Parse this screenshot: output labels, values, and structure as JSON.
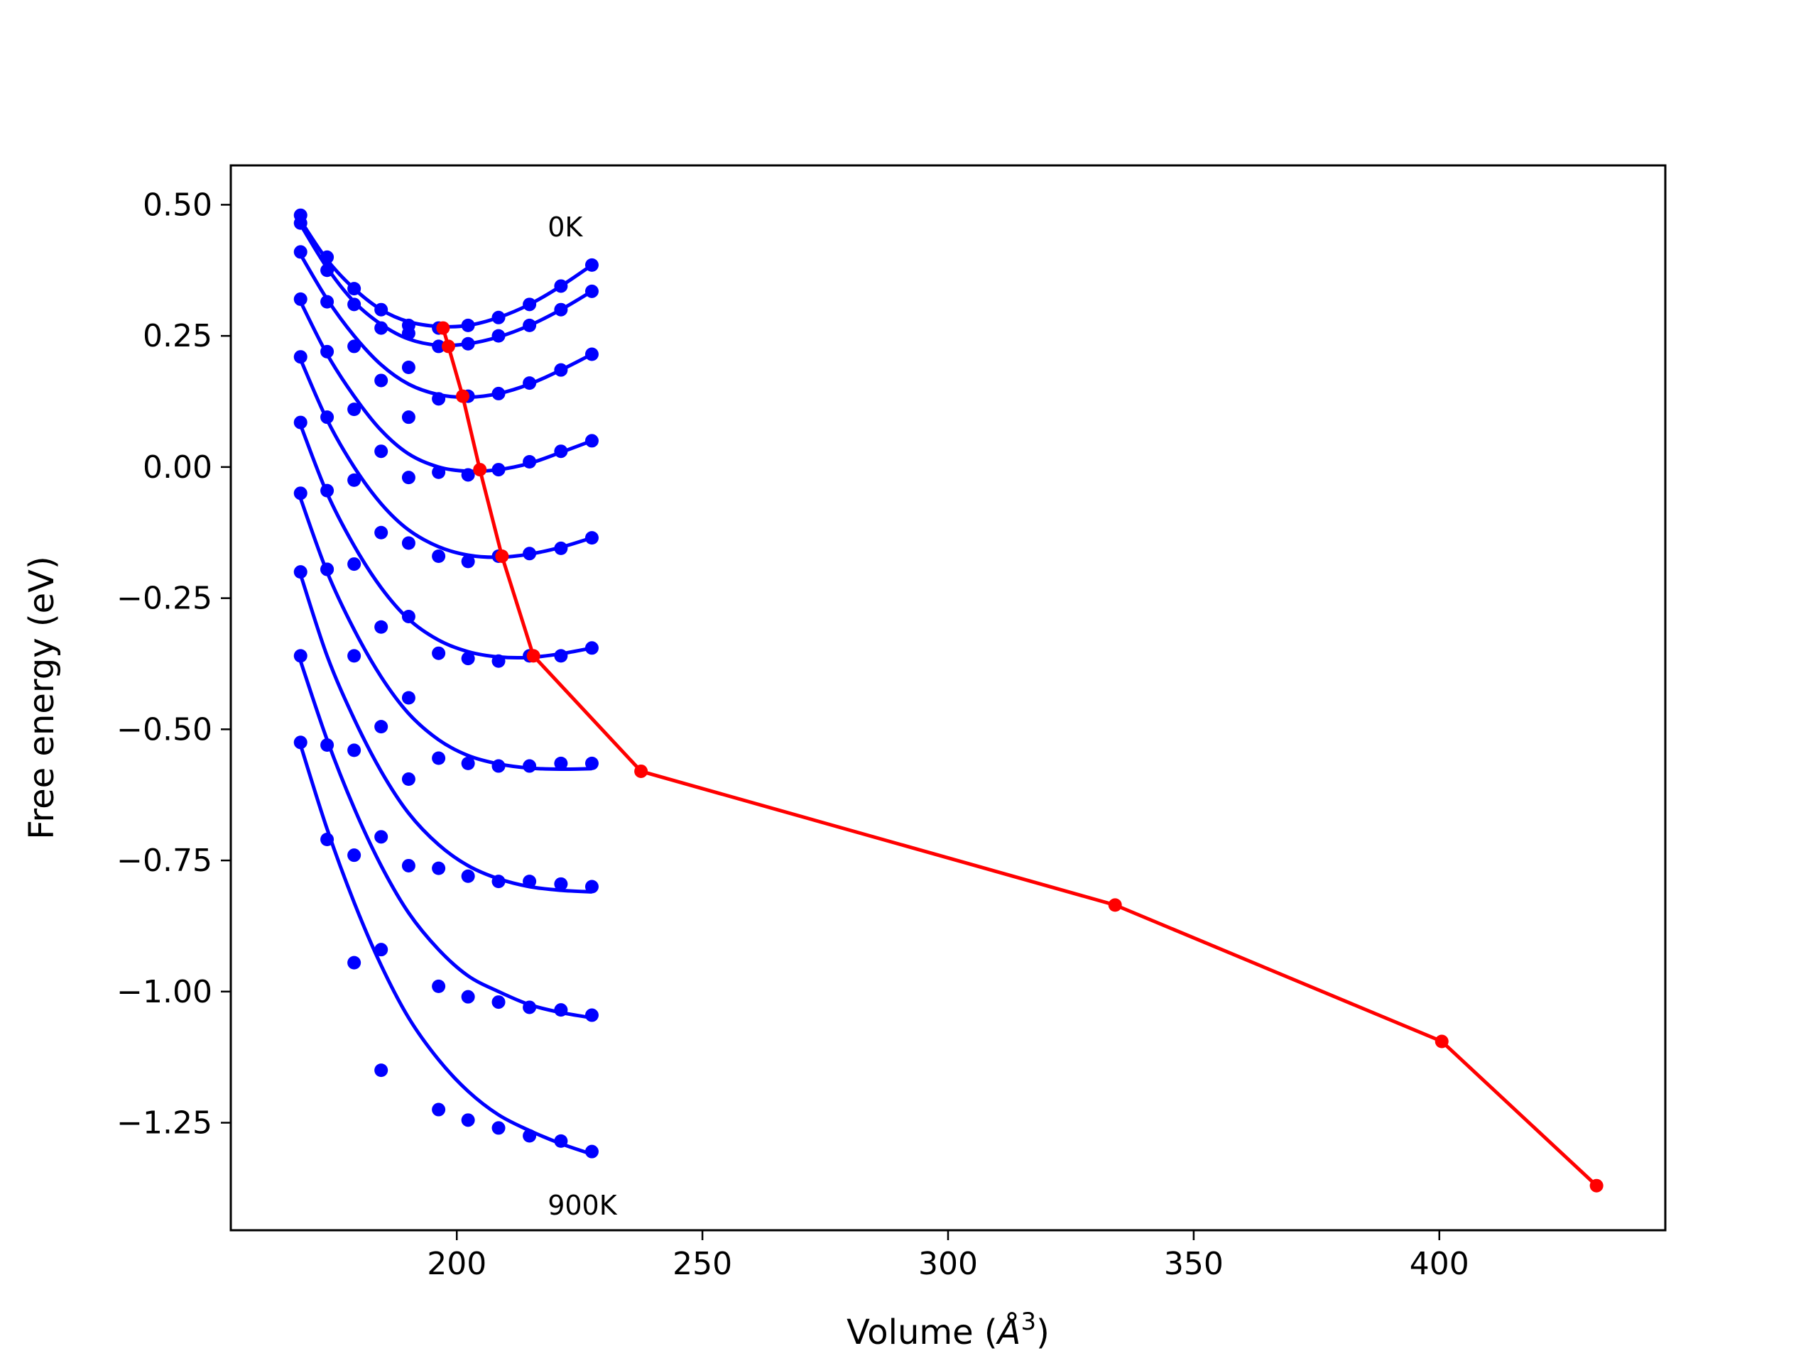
{
  "chart_data": {
    "type": "line",
    "xlabel": "Volume (Å³)",
    "xlabel_parts": {
      "pre": "Volume (",
      "sym": "Å",
      "sup": "3",
      "post": ")"
    },
    "ylabel": "Free energy (eV)",
    "xlim": [
      154,
      446
    ],
    "ylim": [
      -1.455,
      0.575
    ],
    "xticks": [
      200,
      250,
      300,
      350,
      400
    ],
    "xtick_labels": [
      "200",
      "250",
      "300",
      "350",
      "400"
    ],
    "yticks": [
      0.5,
      0.25,
      0.0,
      -0.25,
      -0.5,
      -0.75,
      -1.0,
      -1.25
    ],
    "ytick_labels": [
      "0.50",
      "0.25",
      "0.00",
      "−0.25",
      "−0.50",
      "−0.75",
      "−1.00",
      "−1.25"
    ],
    "grid": false,
    "annotations": [
      {
        "text": "0K",
        "x": 218.5,
        "y": 0.44
      },
      {
        "text": "900K",
        "x": 218.5,
        "y": -1.425
      }
    ],
    "colors": {
      "isotherm": "#0000ff",
      "minimum": "#ff0000"
    },
    "scatter_x": [
      168.2,
      173.6,
      179.1,
      184.6,
      190.2,
      196.3,
      202.3,
      208.5,
      214.8,
      221.2,
      227.5
    ],
    "isotherms": [
      {
        "y": [
          0.48,
          0.4,
          0.34,
          0.3,
          0.27,
          0.265,
          0.27,
          0.285,
          0.31,
          0.345,
          0.385
        ],
        "fit": [
          0.47,
          0.395,
          0.34,
          0.3,
          0.277,
          0.268,
          0.27,
          0.285,
          0.31,
          0.345,
          0.385
        ]
      },
      {
        "y": [
          0.465,
          0.375,
          0.31,
          0.265,
          0.255,
          0.23,
          0.235,
          0.25,
          0.27,
          0.3,
          0.335
        ],
        "fit": [
          0.462,
          0.38,
          0.315,
          0.272,
          0.244,
          0.232,
          0.235,
          0.248,
          0.27,
          0.3,
          0.335
        ]
      },
      {
        "y": [
          0.41,
          0.315,
          0.23,
          0.165,
          0.19,
          0.13,
          0.135,
          0.14,
          0.16,
          0.185,
          0.215
        ],
        "fit": [
          0.405,
          0.32,
          0.25,
          0.195,
          0.158,
          0.138,
          0.133,
          0.14,
          0.158,
          0.185,
          0.215
        ]
      },
      {
        "y": [
          0.32,
          0.22,
          0.11,
          0.03,
          0.095,
          -0.01,
          -0.015,
          -0.005,
          0.01,
          0.03,
          0.05
        ],
        "fit": [
          0.315,
          0.215,
          0.135,
          0.07,
          0.025,
          0.0,
          -0.008,
          -0.005,
          0.007,
          0.028,
          0.05
        ]
      },
      {
        "y": [
          0.21,
          0.095,
          -0.025,
          -0.125,
          -0.02,
          -0.17,
          -0.18,
          -0.17,
          -0.165,
          -0.155,
          -0.135
        ],
        "fit": [
          0.205,
          0.09,
          0.0,
          -0.07,
          -0.12,
          -0.152,
          -0.168,
          -0.172,
          -0.166,
          -0.153,
          -0.135
        ]
      },
      {
        "y": [
          0.085,
          -0.045,
          -0.185,
          -0.305,
          -0.145,
          -0.355,
          -0.365,
          -0.37,
          -0.36,
          -0.36,
          -0.345
        ],
        "fit": [
          0.08,
          -0.05,
          -0.15,
          -0.23,
          -0.29,
          -0.33,
          -0.352,
          -0.362,
          -0.363,
          -0.356,
          -0.345
        ]
      },
      {
        "y": [
          -0.05,
          -0.195,
          -0.36,
          -0.495,
          -0.285,
          -0.555,
          -0.565,
          -0.57,
          -0.57,
          -0.565,
          -0.565
        ],
        "fit": [
          -0.06,
          -0.2,
          -0.31,
          -0.4,
          -0.47,
          -0.52,
          -0.55,
          -0.566,
          -0.574,
          -0.576,
          -0.575
        ]
      },
      {
        "y": [
          -0.2,
          -0.53,
          -0.54,
          -0.705,
          -0.44,
          -0.765,
          -0.78,
          -0.79,
          -0.79,
          -0.795,
          -0.8
        ],
        "fit": [
          -0.205,
          -0.36,
          -0.48,
          -0.58,
          -0.66,
          -0.72,
          -0.76,
          -0.785,
          -0.8,
          -0.807,
          -0.81
        ]
      },
      {
        "y": [
          -0.36,
          -0.71,
          -0.74,
          -0.92,
          -0.595,
          -0.99,
          -1.01,
          -1.02,
          -1.03,
          -1.035,
          -1.045
        ],
        "fit": [
          -0.37,
          -0.52,
          -0.65,
          -0.76,
          -0.85,
          -0.92,
          -0.97,
          -1.0,
          -1.025,
          -1.04,
          -1.05
        ]
      },
      {
        "y": [
          -0.525,
          -0.195,
          -0.945,
          -1.15,
          -0.76,
          -1.225,
          -1.245,
          -1.26,
          -1.275,
          -1.285,
          -1.305
        ],
        "fit": [
          -0.53,
          -0.69,
          -0.83,
          -0.95,
          -1.05,
          -1.13,
          -1.19,
          -1.235,
          -1.265,
          -1.29,
          -1.31
        ]
      }
    ],
    "minimum_curve": {
      "x": [
        197.2,
        198.3,
        201.2,
        204.7,
        209.2,
        215.6,
        237.5,
        334.0,
        400.5,
        432.0
      ],
      "y": [
        0.265,
        0.23,
        0.135,
        -0.005,
        -0.17,
        -0.36,
        -0.58,
        -0.835,
        -1.095,
        -1.37
      ]
    }
  }
}
